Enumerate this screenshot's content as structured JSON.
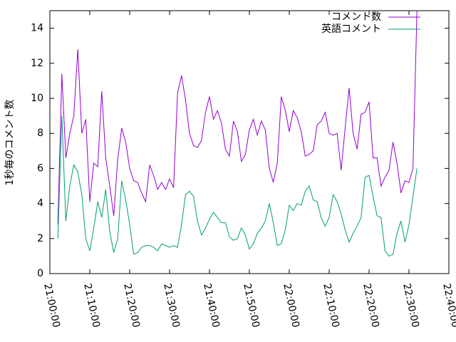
{
  "chart_data": {
    "type": "line",
    "y_label": "1秒毎のコメント数",
    "x": [
      "21:02:00",
      "21:03:00",
      "21:04:00",
      "21:05:00",
      "21:06:00",
      "21:07:00",
      "21:08:00",
      "21:09:00",
      "21:10:00",
      "21:11:00",
      "21:12:00",
      "21:13:00",
      "21:14:00",
      "21:15:00",
      "21:16:00",
      "21:17:00",
      "21:18:00",
      "21:19:00",
      "21:20:00",
      "21:21:00",
      "21:22:00",
      "21:23:00",
      "21:24:00",
      "21:25:00",
      "21:26:00",
      "21:27:00",
      "21:28:00",
      "21:29:00",
      "21:30:00",
      "21:31:00",
      "21:32:00",
      "21:33:00",
      "21:34:00",
      "21:35:00",
      "21:36:00",
      "21:37:00",
      "21:38:00",
      "21:39:00",
      "21:40:00",
      "21:41:00",
      "21:42:00",
      "21:43:00",
      "21:44:00",
      "21:45:00",
      "21:46:00",
      "21:47:00",
      "21:48:00",
      "21:49:00",
      "21:50:00",
      "21:51:00",
      "21:52:00",
      "21:53:00",
      "21:54:00",
      "21:55:00",
      "21:56:00",
      "21:57:00",
      "21:58:00",
      "21:59:00",
      "22:00:00",
      "22:01:00",
      "22:02:00",
      "22:03:00",
      "22:04:00",
      "22:05:00",
      "22:06:00",
      "22:07:00",
      "22:08:00",
      "22:09:00",
      "22:10:00",
      "22:11:00",
      "22:12:00",
      "22:13:00",
      "22:14:00",
      "22:15:00",
      "22:16:00",
      "22:17:00",
      "22:18:00",
      "22:19:00",
      "22:20:00",
      "22:21:00",
      "22:22:00",
      "22:23:00",
      "22:24:00",
      "22:25:00",
      "22:26:00",
      "22:27:00",
      "22:28:00",
      "22:29:00",
      "22:30:00",
      "22:31:00",
      "22:32:00"
    ],
    "series": [
      {
        "name": "コメント数",
        "color": "#9400d3",
        "values": [
          2.8,
          11.4,
          6.6,
          8.0,
          9.0,
          12.8,
          8.0,
          8.8,
          4.1,
          6.3,
          6.1,
          10.4,
          6.6,
          5.0,
          3.3,
          6.5,
          8.3,
          7.5,
          6.0,
          5.3,
          5.2,
          4.6,
          4.1,
          6.2,
          5.6,
          4.8,
          5.2,
          4.8,
          5.4,
          4.9,
          10.3,
          11.3,
          9.9,
          8.0,
          7.3,
          7.2,
          7.6,
          9.2,
          10.1,
          8.8,
          9.3,
          8.6,
          7.1,
          6.7,
          8.7,
          8.1,
          6.4,
          6.8,
          8.2,
          8.8,
          7.9,
          8.7,
          8.2,
          6.0,
          5.2,
          6.3,
          10.1,
          9.3,
          8.1,
          9.3,
          8.9,
          8.1,
          6.7,
          6.8,
          7.0,
          8.5,
          8.7,
          9.2,
          8.0,
          7.9,
          8.0,
          5.9,
          8.3,
          10.6,
          8.0,
          7.1,
          9.1,
          9.2,
          9.8,
          6.6,
          6.6,
          5.0,
          5.5,
          5.9,
          7.5,
          6.3,
          4.6,
          5.3,
          5.2,
          6.0,
          15
        ]
      },
      {
        "name": "英語コメント",
        "color": "#009e73",
        "values": [
          2.0,
          9.0,
          3.0,
          5.0,
          6.2,
          5.8,
          4.5,
          2.0,
          1.3,
          2.6,
          4.1,
          3.2,
          4.8,
          2.4,
          1.2,
          2.0,
          5.3,
          4.2,
          2.8,
          1.1,
          1.2,
          1.5,
          1.6,
          1.6,
          1.5,
          1.3,
          1.7,
          1.6,
          1.5,
          1.6,
          1.5,
          2.8,
          4.5,
          4.7,
          4.4,
          3.0,
          2.2,
          2.6,
          3.1,
          3.5,
          3.2,
          2.9,
          2.9,
          2.1,
          1.9,
          2.0,
          2.6,
          2.2,
          1.4,
          1.7,
          2.3,
          2.6,
          3.0,
          4.0,
          2.9,
          1.6,
          1.7,
          2.5,
          3.9,
          3.6,
          4.0,
          3.9,
          4.7,
          5.0,
          4.2,
          4.1,
          3.2,
          2.7,
          3.2,
          4.5,
          4.1,
          3.4,
          2.5,
          1.8,
          2.3,
          2.7,
          3.2,
          5.5,
          5.6,
          4.4,
          3.3,
          3.2,
          1.3,
          1.0,
          1.1,
          2.3,
          3.0,
          1.8,
          2.8,
          4.4,
          6.0
        ]
      }
    ],
    "xlim": [
      "21:00:00",
      "22:40:00"
    ],
    "xticks": [
      "21:00:00",
      "21:10:00",
      "21:20:00",
      "21:30:00",
      "21:40:00",
      "21:50:00",
      "22:00:00",
      "22:10:00",
      "22:20:00",
      "22:30:00",
      "22:40:00"
    ],
    "ylim": [
      0,
      15
    ],
    "yticks": [
      0,
      2,
      4,
      6,
      8,
      10,
      12,
      14
    ],
    "legend": "top right",
    "grid": false
  }
}
